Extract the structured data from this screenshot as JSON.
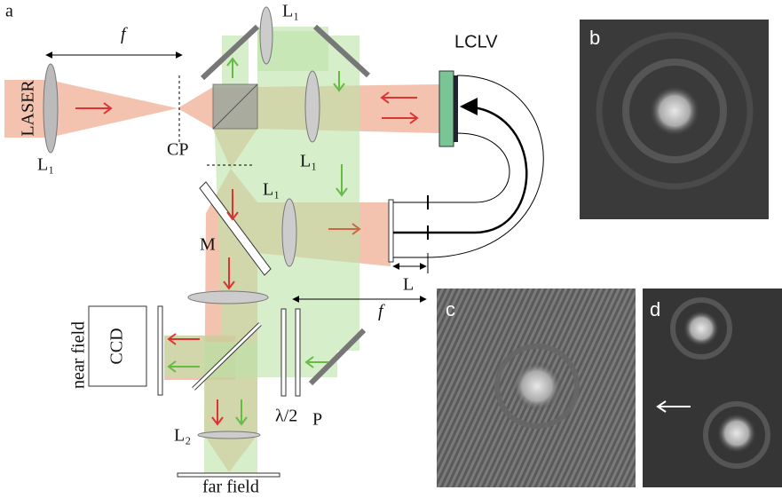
{
  "panel_a": {
    "label": "a",
    "focal_top": "f",
    "laser": "LASER",
    "lens1_left": "L₁",
    "pinhole": "CP",
    "lens1_top": "L₁",
    "lens1_mid": "L₁",
    "lens1_low": "L₁",
    "mirror": "M",
    "lclv": "LCLV",
    "distance": "L",
    "focal_mid": "f",
    "camera": "CCD",
    "near_field": "near field",
    "half_wave": "λ/2",
    "polarizer": "P",
    "lens2": "L₂",
    "far_field": "far field"
  },
  "panel_b": {
    "label": "b"
  },
  "panel_c": {
    "label": "c"
  },
  "panel_d": {
    "label": "d"
  }
}
